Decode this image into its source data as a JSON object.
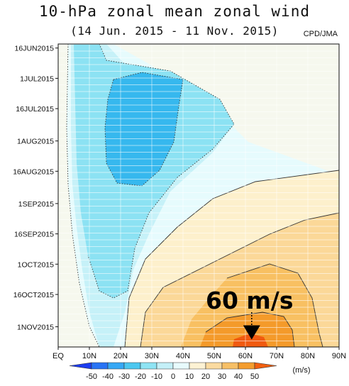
{
  "chart_data": {
    "type": "heatmap",
    "title": "10-hPa zonal mean zonal wind",
    "subtitle": "(14 Jun. 2015 - 11 Nov. 2015)",
    "credit": "CPD/JMA",
    "x_ticks": [
      "EQ",
      "10N",
      "20N",
      "30N",
      "40N",
      "50N",
      "60N",
      "70N",
      "80N",
      "90N"
    ],
    "x_values": [
      0,
      10,
      20,
      30,
      40,
      50,
      60,
      70,
      80,
      90
    ],
    "y_ticks": [
      "16JUN2015",
      "1JUL2015",
      "16JUL2015",
      "1AUG2015",
      "16AUG2015",
      "1SEP2015",
      "16SEP2015",
      "1OCT2015",
      "16OCT2015",
      "1NOV2015"
    ],
    "y_day_index": [
      2,
      17,
      32,
      48,
      63,
      79,
      94,
      109,
      124,
      140
    ],
    "day_range": [
      0,
      150
    ],
    "colorbar": {
      "unit": "(m/s)",
      "labels": [
        "-50",
        "-40",
        "-30",
        "-20",
        "-10",
        "0",
        "10",
        "20",
        "30",
        "40",
        "50"
      ],
      "colors": [
        "#1c3cf0",
        "#2874f5",
        "#36a8f5",
        "#4cc8f0",
        "#8ee4f4",
        "#c4f0f8",
        "#e8fbfd",
        "#fdf2d4",
        "#fbdba0",
        "#f7c066",
        "#f49d2e",
        "#f26010"
      ]
    },
    "annotation": "60 m/s",
    "annotation_target": {
      "lat": 62,
      "day_index": 140
    }
  }
}
